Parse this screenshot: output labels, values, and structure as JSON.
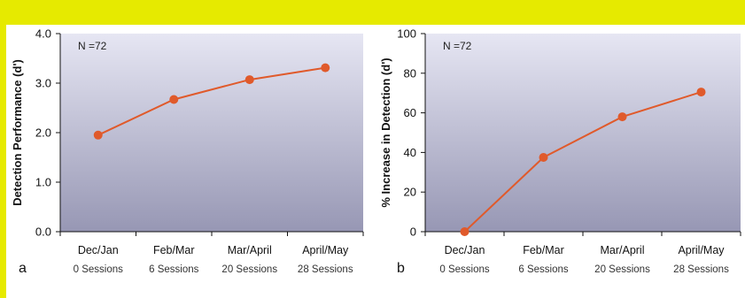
{
  "frame": {
    "color": "#e6ea00"
  },
  "colors": {
    "series": "#e05a2b",
    "plot_top": "#e6e6f3",
    "plot_bottom": "#9797b4"
  },
  "chart_data": [
    {
      "type": "line",
      "panel_label": "a",
      "note": "N  =72",
      "ylabel": "Detection Performance (d')",
      "xlabel": "",
      "categories": [
        "Dec/Jan",
        "Feb/Mar",
        "Mar/April",
        "April/May"
      ],
      "subcategories": [
        "0 Sessions",
        "6 Sessions",
        "20 Sessions",
        "28 Sessions"
      ],
      "ylim": [
        0,
        4
      ],
      "yticks": [
        "0.0",
        "1.0",
        "2.0",
        "3.0",
        "4.0"
      ],
      "yticks_values": [
        0,
        1,
        2,
        3,
        4
      ],
      "values": [
        1.95,
        2.67,
        3.07,
        3.31
      ],
      "grid": false,
      "legend": "none"
    },
    {
      "type": "line",
      "panel_label": "b",
      "note": "N  =72",
      "ylabel": "% Increase in Detection (d')",
      "xlabel": "",
      "categories": [
        "Dec/Jan",
        "Feb/Mar",
        "Mar/April",
        "April/May"
      ],
      "subcategories": [
        "0 Sessions",
        "6 Sessions",
        "20 Sessions",
        "28 Sessions"
      ],
      "ylim": [
        0,
        100
      ],
      "yticks": [
        "0",
        "20",
        "40",
        "60",
        "80",
        "100"
      ],
      "yticks_values": [
        0,
        20,
        40,
        60,
        80,
        100
      ],
      "values": [
        0,
        37.5,
        58,
        70.5
      ],
      "grid": false,
      "legend": "none"
    }
  ]
}
